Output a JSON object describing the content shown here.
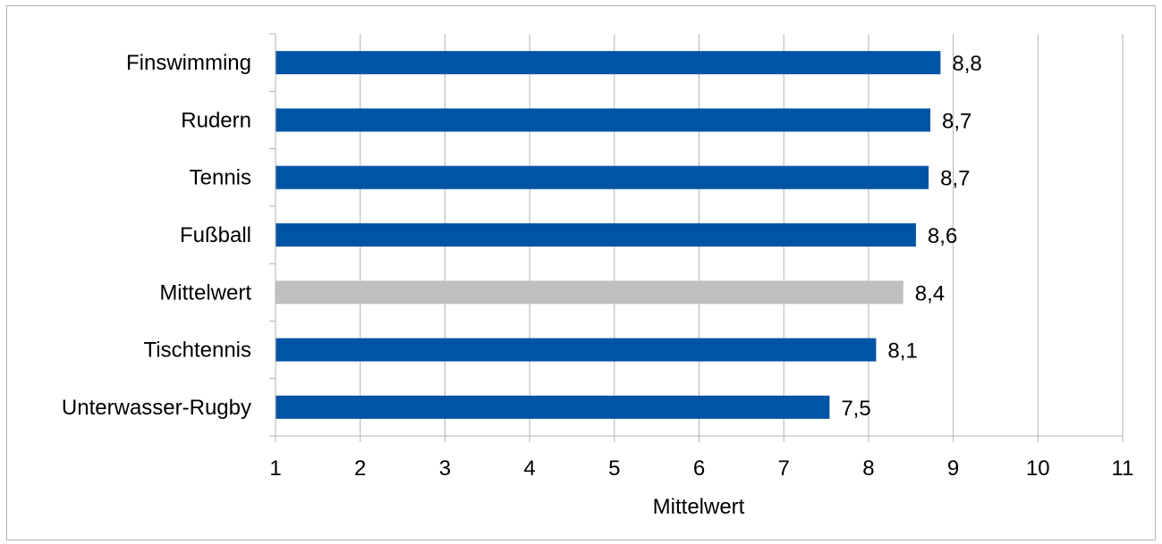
{
  "chart_data": {
    "type": "bar",
    "orientation": "horizontal",
    "categories": [
      "Finswimming",
      "Rudern",
      "Tennis",
      "Fußball",
      "Mittelwert",
      "Tischtennis",
      "Unterwasser-Rugby"
    ],
    "values": [
      8.85,
      8.73,
      8.71,
      8.56,
      8.41,
      8.09,
      7.54
    ],
    "value_labels": [
      "8,8",
      "8,7",
      "8,7",
      "8,6",
      "8,4",
      "8,1",
      "7,5"
    ],
    "bar_colors": [
      "#0054a6",
      "#0054a6",
      "#0054a6",
      "#0054a6",
      "#c0c0c0",
      "#0054a6",
      "#0054a6"
    ],
    "xlabel": "Mittelwert",
    "xlim": [
      1,
      11
    ],
    "xticks": [
      1,
      2,
      3,
      4,
      5,
      6,
      7,
      8,
      9,
      10,
      11
    ],
    "grid": true,
    "legend": "none"
  }
}
